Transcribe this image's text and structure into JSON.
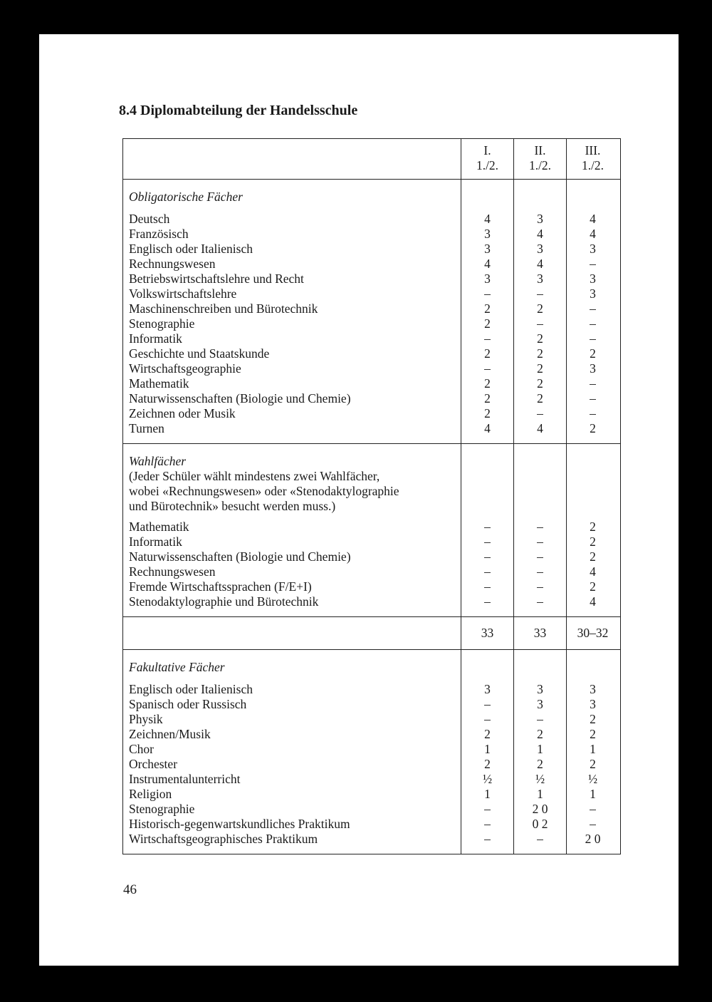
{
  "title": "8.4 Diplomabteilung der Handelsschule",
  "columns": [
    {
      "line1": "I.",
      "line2": "1./2."
    },
    {
      "line1": "II.",
      "line2": "1./2."
    },
    {
      "line1": "III.",
      "line2": "1./2."
    }
  ],
  "sections": [
    {
      "heading": "Obligatorische Fächer",
      "note": "",
      "rows": [
        {
          "subject": "Deutsch",
          "values": [
            "4",
            "3",
            "4"
          ]
        },
        {
          "subject": "Französisch",
          "values": [
            "3",
            "4",
            "4"
          ]
        },
        {
          "subject": "Englisch oder Italienisch",
          "values": [
            "3",
            "3",
            "3"
          ]
        },
        {
          "subject": "Rechnungswesen",
          "values": [
            "4",
            "4",
            "–"
          ]
        },
        {
          "subject": "Betriebswirtschaftslehre und Recht",
          "values": [
            "3",
            "3",
            "3"
          ]
        },
        {
          "subject": "Volkswirtschaftslehre",
          "values": [
            "–",
            "–",
            "3"
          ]
        },
        {
          "subject": "Maschinenschreiben und Bürotechnik",
          "values": [
            "2",
            "2",
            "–"
          ]
        },
        {
          "subject": "Stenographie",
          "values": [
            "2",
            "–",
            "–"
          ]
        },
        {
          "subject": "Informatik",
          "values": [
            "–",
            "2",
            "–"
          ]
        },
        {
          "subject": "Geschichte und Staatskunde",
          "values": [
            "2",
            "2",
            "2"
          ]
        },
        {
          "subject": "Wirtschaftsgeographie",
          "values": [
            "–",
            "2",
            "3"
          ]
        },
        {
          "subject": "Mathematik",
          "values": [
            "2",
            "2",
            "–"
          ]
        },
        {
          "subject": "Naturwissenschaften (Biologie und Chemie)",
          "values": [
            "2",
            "2",
            "–"
          ]
        },
        {
          "subject": "Zeichnen oder Musik",
          "values": [
            "2",
            "–",
            "–"
          ]
        },
        {
          "subject": "Turnen",
          "values": [
            "4",
            "4",
            "2"
          ]
        }
      ]
    },
    {
      "heading": "Wahlfächer",
      "note": [
        "(Jeder Schüler wählt mindestens zwei Wahlfächer,",
        "wobei «Rechnungswesen» oder «Stenodaktylographie",
        "und Bürotechnik» besucht werden muss.)"
      ],
      "rows": [
        {
          "subject": "Mathematik",
          "values": [
            "–",
            "–",
            "2"
          ]
        },
        {
          "subject": "Informatik",
          "values": [
            "–",
            "–",
            "2"
          ]
        },
        {
          "subject": "Naturwissenschaften (Biologie und Chemie)",
          "values": [
            "–",
            "–",
            "2"
          ]
        },
        {
          "subject": "Rechnungswesen",
          "values": [
            "–",
            "–",
            "4"
          ]
        },
        {
          "subject": "Fremde Wirtschaftssprachen (F/E+I)",
          "values": [
            "–",
            "–",
            "2"
          ]
        },
        {
          "subject": "Stenodaktylographie und Bürotechnik",
          "values": [
            "–",
            "–",
            "4"
          ]
        }
      ]
    },
    {
      "total": true,
      "values": [
        "33",
        "33",
        "30–32"
      ]
    },
    {
      "heading": "Fakultative Fächer",
      "note": "",
      "rows": [
        {
          "subject": "Englisch oder Italienisch",
          "values": [
            "3",
            "3",
            "3"
          ]
        },
        {
          "subject": "Spanisch oder Russisch",
          "values": [
            "–",
            "3",
            "3"
          ]
        },
        {
          "subject": "Physik",
          "values": [
            "–",
            "–",
            "2"
          ]
        },
        {
          "subject": "Zeichnen/Musik",
          "values": [
            "2",
            "2",
            "2"
          ]
        },
        {
          "subject": "Chor",
          "values": [
            "1",
            "1",
            "1"
          ]
        },
        {
          "subject": "Orchester",
          "values": [
            "2",
            "2",
            "2"
          ]
        },
        {
          "subject": "Instrumentalunterricht",
          "values": [
            "½",
            "½",
            "½"
          ]
        },
        {
          "subject": "Religion",
          "values": [
            "1",
            "1",
            "1"
          ]
        },
        {
          "subject": "Stenographie",
          "values": [
            "–",
            "2 0",
            "–"
          ]
        },
        {
          "subject": "Historisch-gegenwartskundliches Praktikum",
          "values": [
            "–",
            "0 2",
            "–"
          ]
        },
        {
          "subject": "Wirtschaftsgeographisches Praktikum",
          "values": [
            "–",
            "–",
            "2 0"
          ]
        }
      ]
    }
  ],
  "page_number": "46"
}
